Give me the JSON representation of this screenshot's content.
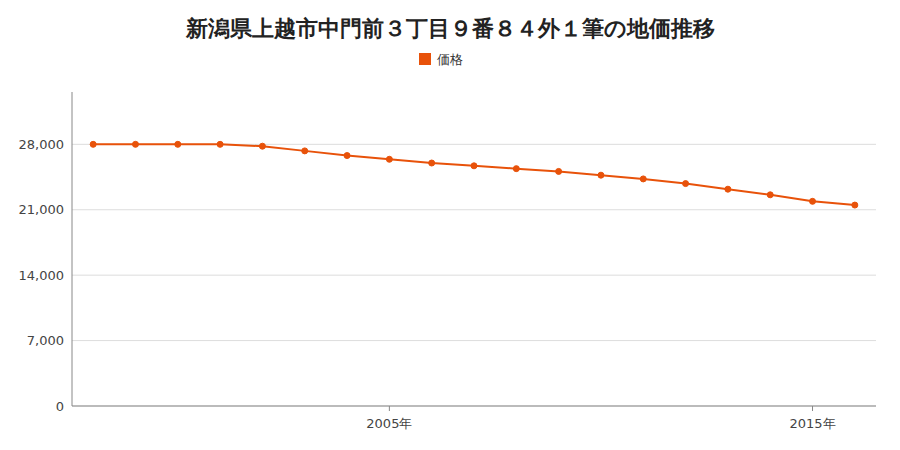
{
  "chart_data": {
    "type": "line",
    "title": "新潟県上越市中門前３丁目９番８４外１筆の地価推移",
    "x": [
      1998,
      1999,
      2000,
      2001,
      2002,
      2003,
      2004,
      2005,
      2006,
      2007,
      2008,
      2009,
      2010,
      2011,
      2012,
      2013,
      2014,
      2015,
      2016
    ],
    "series": [
      {
        "name": "価格",
        "color": "#e8520a",
        "marker": "circle",
        "values": [
          28000,
          28000,
          28000,
          28000,
          27800,
          27300,
          26800,
          26400,
          26000,
          25700,
          25400,
          25100,
          24700,
          24300,
          23800,
          23200,
          22600,
          21900,
          21500
        ]
      }
    ],
    "xlim": [
      1997.5,
      2016.5
    ],
    "xticks": [
      {
        "value": 2005,
        "label": "2005年"
      },
      {
        "value": 2015,
        "label": "2015年"
      }
    ],
    "ylim": [
      0,
      33600
    ],
    "yticks": [
      0,
      {
        "value": 7000,
        "label": "7,000"
      },
      {
        "value": 14000,
        "label": "14,000"
      },
      {
        "value": 21000,
        "label": "21,000"
      },
      {
        "value": 28000,
        "label": "28,000"
      }
    ],
    "grid": true,
    "legend": "top"
  }
}
